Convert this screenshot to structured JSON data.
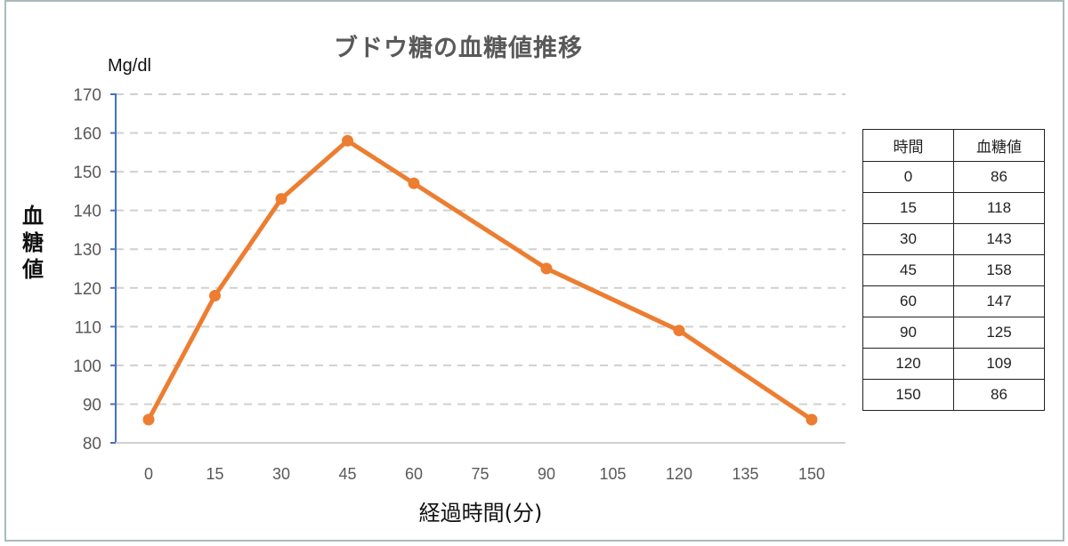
{
  "chart_data": {
    "type": "line",
    "title": "ブドウ糖の血糖値推移",
    "xlabel": "経過時間(分)",
    "ylabel": "血糖値",
    "yunit": "Mg/dl",
    "categories": [
      "0",
      "15",
      "30",
      "45",
      "60",
      "75",
      "90",
      "105",
      "120",
      "135",
      "150"
    ],
    "ylim": [
      80,
      170
    ],
    "yticks": [
      80,
      90,
      100,
      110,
      120,
      130,
      140,
      150,
      160,
      170
    ],
    "grid": "horizontal dashed",
    "series": [
      {
        "name": "血糖値",
        "color": "#ed7d31",
        "points": [
          {
            "x": 0,
            "y": 86
          },
          {
            "x": 15,
            "y": 118
          },
          {
            "x": 30,
            "y": 143
          },
          {
            "x": 45,
            "y": 158
          },
          {
            "x": 60,
            "y": 147
          },
          {
            "x": 90,
            "y": 125
          },
          {
            "x": 120,
            "y": 109
          },
          {
            "x": 150,
            "y": 86
          }
        ]
      }
    ]
  },
  "table": {
    "headers": [
      "時間",
      "血糖値"
    ],
    "rows": [
      [
        "0",
        "86"
      ],
      [
        "15",
        "118"
      ],
      [
        "30",
        "143"
      ],
      [
        "45",
        "158"
      ],
      [
        "60",
        "147"
      ],
      [
        "90",
        "125"
      ],
      [
        "120",
        "109"
      ],
      [
        "150",
        "86"
      ]
    ]
  },
  "colors": {
    "line": "#ed7d31",
    "axis": "#4472c4",
    "grid": "#d0d0d0",
    "frame": "#a9babd"
  }
}
